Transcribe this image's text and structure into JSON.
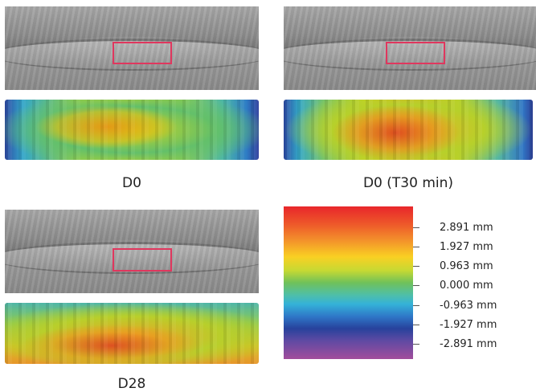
{
  "panels": [
    {
      "id": "d0",
      "label": "D0"
    },
    {
      "id": "t30",
      "label": "D0 (T30 min)"
    },
    {
      "id": "d28",
      "label": "D28"
    }
  ],
  "colorbar": {
    "ticks": [
      "2.891 mm",
      "1.927 mm",
      "0.963 mm",
      "0.000 mm",
      "-0.963 mm",
      "-1.927 mm",
      "-2.891 mm"
    ],
    "colors": [
      "#e8262b",
      "#f9d023",
      "#6fc15a",
      "#34b2d8",
      "#27429c",
      "#a24d9c"
    ]
  },
  "roi_color": "#e0375e"
}
